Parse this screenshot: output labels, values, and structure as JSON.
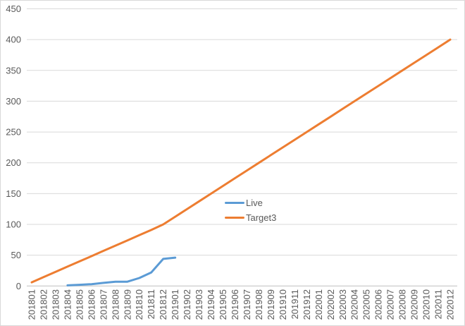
{
  "chart_data": {
    "type": "line",
    "title": "",
    "xlabel": "",
    "ylabel": "",
    "ylim": [
      0,
      450
    ],
    "ytick_step": 50,
    "y_tick_labels": [
      "0",
      "50",
      "100",
      "150",
      "200",
      "250",
      "300",
      "350",
      "400",
      "450"
    ],
    "grid": true,
    "legend_position": "overlay-center",
    "categories": [
      "201801",
      "201802",
      "201803",
      "201804",
      "201805",
      "201806",
      "201807",
      "201808",
      "201809",
      "201810",
      "201811",
      "201812",
      "201901",
      "201902",
      "201903",
      "201904",
      "201905",
      "201906",
      "201907",
      "201908",
      "201909",
      "201910",
      "201911",
      "201912",
      "202001",
      "202002",
      "202003",
      "202004",
      "202005",
      "202006",
      "202007",
      "202008",
      "202009",
      "202010",
      "202011",
      "202012"
    ],
    "series": [
      {
        "name": "Live",
        "color": "#5B9BD5",
        "values": [
          null,
          null,
          null,
          1,
          2,
          3,
          5,
          7,
          7,
          13,
          22,
          44,
          46,
          null,
          null,
          null,
          null,
          null,
          null,
          null,
          null,
          null,
          null,
          null,
          null,
          null,
          null,
          null,
          null,
          null,
          null,
          null,
          null,
          null,
          null,
          null
        ]
      },
      {
        "name": "Target3",
        "color": "#ED7D31",
        "values": [
          6,
          14.5,
          23,
          31.5,
          40,
          48.5,
          57,
          65.5,
          74,
          82.5,
          91,
          100,
          112.5,
          125,
          137.5,
          150,
          162.5,
          175,
          187.5,
          200,
          212.5,
          225,
          237.5,
          250,
          262.5,
          275,
          287.5,
          300,
          312.5,
          325,
          337.5,
          350,
          362.5,
          375,
          387.5,
          400
        ]
      }
    ]
  },
  "legend": {
    "items": [
      {
        "label": "Live",
        "color": "#5B9BD5"
      },
      {
        "label": "Target3",
        "color": "#ED7D31"
      }
    ]
  },
  "colors": {
    "gridline": "#D9D9D9",
    "axis_line": "#BFBFBF",
    "tick_text": "#595959",
    "background": "#FFFFFF"
  }
}
